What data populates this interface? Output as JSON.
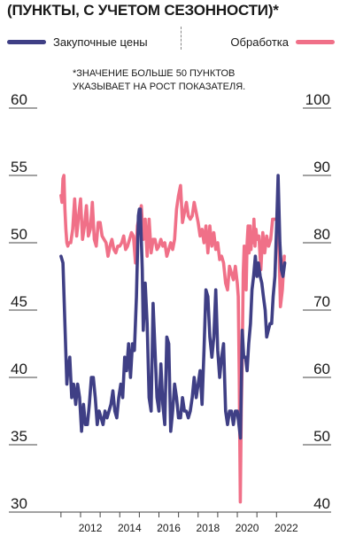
{
  "header": {
    "title": "(ПУНКТЫ, С УЧЕТОМ СЕЗОННОСТИ)*"
  },
  "colors": {
    "purchase_prices": "#3f3f85",
    "processing": "#f07088",
    "gridline": "#444444",
    "text": "#1a1a1a"
  },
  "chart_data": {
    "type": "line",
    "title": "(ПУНКТЫ, С УЧЕТОМ СЕЗОННОСТИ)*",
    "annotation": [
      "*ЗНАЧЕНИЕ БОЛЬШЕ 50 ПУНКТОВ",
      "УКАЗЫВАЕТ НА РОСТ ПОКАЗАТЕЛЯ."
    ],
    "x_ticks": [
      "2012",
      "2014",
      "2016",
      "2018",
      "2020",
      "2022"
    ],
    "xlim": [
      2010.6,
      2022.8
    ],
    "y_left": {
      "ticks": [
        "30",
        "35",
        "40",
        "45",
        "50",
        "55",
        "60"
      ],
      "ylim": [
        30,
        60
      ]
    },
    "y_right": {
      "ticks": [
        "40",
        "50",
        "60",
        "70",
        "80",
        "90",
        "100"
      ],
      "ylim": [
        40,
        100
      ]
    },
    "grid": "horizontal",
    "legend_position": "top",
    "series": [
      {
        "name": "Закупочные цены",
        "axis": "left",
        "color": "#3f3f85",
        "x": [
          2011.0,
          2011.1,
          2011.2,
          2011.3,
          2011.35,
          2011.45,
          2011.55,
          2011.65,
          2011.75,
          2011.85,
          2011.95,
          2012.05,
          2012.15,
          2012.25,
          2012.35,
          2012.45,
          2012.55,
          2012.65,
          2012.75,
          2012.85,
          2012.95,
          2013.05,
          2013.15,
          2013.25,
          2013.35,
          2013.45,
          2013.55,
          2013.65,
          2013.75,
          2013.85,
          2013.95,
          2014.05,
          2014.15,
          2014.25,
          2014.35,
          2014.45,
          2014.55,
          2014.65,
          2014.75,
          2014.85,
          2014.95,
          2015.0,
          2015.05,
          2015.15,
          2015.2,
          2015.3,
          2015.4,
          2015.5,
          2015.6,
          2015.7,
          2015.8,
          2015.9,
          2016.0,
          2016.1,
          2016.2,
          2016.3,
          2016.4,
          2016.5,
          2016.6,
          2016.7,
          2016.8,
          2016.9,
          2017.0,
          2017.1,
          2017.2,
          2017.3,
          2017.4,
          2017.5,
          2017.6,
          2017.7,
          2017.8,
          2017.9,
          2018.0,
          2018.1,
          2018.2,
          2018.3,
          2018.4,
          2018.5,
          2018.6,
          2018.7,
          2018.8,
          2018.9,
          2019.0,
          2019.1,
          2019.2,
          2019.3,
          2019.4,
          2019.5,
          2019.6,
          2019.7,
          2019.8,
          2019.9,
          2020.0,
          2020.08,
          2020.16,
          2020.25,
          2020.33,
          2020.42,
          2020.5,
          2020.58,
          2020.67,
          2020.75,
          2020.83,
          2020.92,
          2021.0,
          2021.08,
          2021.17,
          2021.25,
          2021.33,
          2021.42,
          2021.5,
          2021.58,
          2021.67,
          2021.75,
          2021.83,
          2021.92,
          2022.0,
          2022.08,
          2022.17,
          2022.25,
          2022.33,
          2022.42
        ],
        "values": [
          49.0,
          48.5,
          44.0,
          39.5,
          40.5,
          41.5,
          38.5,
          39.5,
          38.0,
          39.5,
          38.5,
          36.0,
          38.0,
          36.5,
          36.5,
          38.0,
          40.0,
          40.0,
          38.5,
          36.5,
          37.5,
          37.0,
          36.5,
          37.5,
          37.0,
          37.5,
          38.0,
          39.0,
          37.5,
          37.0,
          38.5,
          39.5,
          38.5,
          41.5,
          40.5,
          42.5,
          40.0,
          42.5,
          42.0,
          46.0,
          52.0,
          52.5,
          52.5,
          48.0,
          43.5,
          47.0,
          44.0,
          38.5,
          37.5,
          45.5,
          42.0,
          38.5,
          37.5,
          41.0,
          38.0,
          36.5,
          43.0,
          42.5,
          36.0,
          37.5,
          39.5,
          38.5,
          37.0,
          37.0,
          38.5,
          37.5,
          37.5,
          37.0,
          37.5,
          38.5,
          40.0,
          38.5,
          39.5,
          40.5,
          38.0,
          42.0,
          46.5,
          46.0,
          43.0,
          41.5,
          43.0,
          46.5,
          42.0,
          40.0,
          41.5,
          42.5,
          37.5,
          36.5,
          37.5,
          37.5,
          36.5,
          37.5,
          37.5,
          36.5,
          35.5,
          43.5,
          41.5,
          41.5,
          40.5,
          42.5,
          44.0,
          46.5,
          47.5,
          49.0,
          47.5,
          48.5,
          47.5,
          47.0,
          46.0,
          45.0,
          43.0,
          43.5,
          44.0,
          44.0,
          46.0,
          47.5,
          51.0,
          55.0,
          50.0,
          48.0,
          47.5,
          48.5
        ]
      },
      {
        "name": "Обработка",
        "axis": "right",
        "color": "#f07088",
        "x": [
          2011.0,
          2011.05,
          2011.1,
          2011.15,
          2011.2,
          2011.25,
          2011.3,
          2011.35,
          2011.4,
          2011.5,
          2011.6,
          2011.7,
          2011.8,
          2011.9,
          2012.0,
          2012.1,
          2012.2,
          2012.3,
          2012.4,
          2012.5,
          2012.6,
          2012.7,
          2012.8,
          2012.9,
          2013.0,
          2013.1,
          2013.2,
          2013.3,
          2013.4,
          2013.5,
          2013.6,
          2013.7,
          2013.8,
          2013.9,
          2014.0,
          2014.1,
          2014.2,
          2014.3,
          2014.4,
          2014.5,
          2014.6,
          2014.7,
          2014.8,
          2014.9,
          2015.0,
          2015.1,
          2015.2,
          2015.3,
          2015.4,
          2015.5,
          2015.6,
          2015.7,
          2015.8,
          2015.9,
          2016.0,
          2016.1,
          2016.2,
          2016.3,
          2016.4,
          2016.5,
          2016.6,
          2016.7,
          2016.8,
          2016.9,
          2017.0,
          2017.1,
          2017.2,
          2017.3,
          2017.4,
          2017.5,
          2017.6,
          2017.7,
          2017.8,
          2017.9,
          2018.0,
          2018.1,
          2018.2,
          2018.3,
          2018.4,
          2018.5,
          2018.6,
          2018.7,
          2018.8,
          2018.9,
          2019.0,
          2019.1,
          2019.2,
          2019.3,
          2019.4,
          2019.5,
          2019.6,
          2019.7,
          2019.8,
          2019.9,
          2020.0,
          2020.05,
          2020.1,
          2020.15,
          2020.2,
          2020.25,
          2020.3,
          2020.35,
          2020.4,
          2020.45,
          2020.5,
          2020.55,
          2020.6,
          2020.65,
          2020.7,
          2020.75,
          2020.8,
          2020.85,
          2020.9,
          2020.95,
          2021.0,
          2021.1,
          2021.2,
          2021.3,
          2021.4,
          2021.5,
          2021.6,
          2021.7,
          2021.8,
          2021.9,
          2022.0,
          2022.1,
          2022.2,
          2022.3,
          2022.4
        ],
        "values": [
          87.0,
          86.0,
          89.5,
          90.0,
          85.0,
          82.0,
          80.0,
          79.5,
          80.0,
          80.0,
          82.0,
          86.5,
          81.0,
          84.0,
          86.5,
          80.5,
          82.5,
          85.5,
          81.0,
          82.0,
          86.0,
          80.5,
          79.5,
          83.0,
          83.0,
          81.0,
          80.5,
          80.0,
          78.0,
          79.5,
          80.5,
          79.0,
          78.5,
          79.5,
          79.5,
          80.0,
          81.0,
          79.0,
          79.5,
          80.5,
          81.5,
          81.0,
          77.0,
          82.5,
          84.0,
          85.5,
          80.5,
          83.5,
          78.0,
          83.5,
          78.5,
          80.5,
          80.5,
          79.0,
          79.5,
          80.5,
          79.5,
          80.0,
          78.0,
          79.0,
          80.0,
          79.0,
          80.5,
          85.0,
          87.0,
          88.5,
          83.0,
          84.5,
          86.0,
          84.0,
          83.5,
          84.0,
          86.0,
          84.5,
          83.0,
          81.0,
          82.0,
          80.0,
          82.5,
          78.5,
          82.5,
          79.5,
          81.5,
          79.0,
          80.0,
          77.5,
          78.0,
          77.0,
          74.0,
          73.0,
          76.5,
          75.5,
          74.5,
          76.5,
          74.0,
          72.0,
          60.0,
          41.5,
          55.0,
          63.0,
          75.5,
          79.5,
          78.0,
          73.0,
          80.0,
          82.5,
          78.5,
          82.5,
          79.0,
          81.5,
          80.0,
          83.5,
          79.5,
          82.0,
          80.5,
          81.0,
          76.0,
          81.5,
          78.5,
          81.0,
          79.5,
          80.5,
          83.5,
          83.5,
          83.5,
          83.0,
          70.5,
          73.0,
          78.0
        ]
      }
    ]
  }
}
